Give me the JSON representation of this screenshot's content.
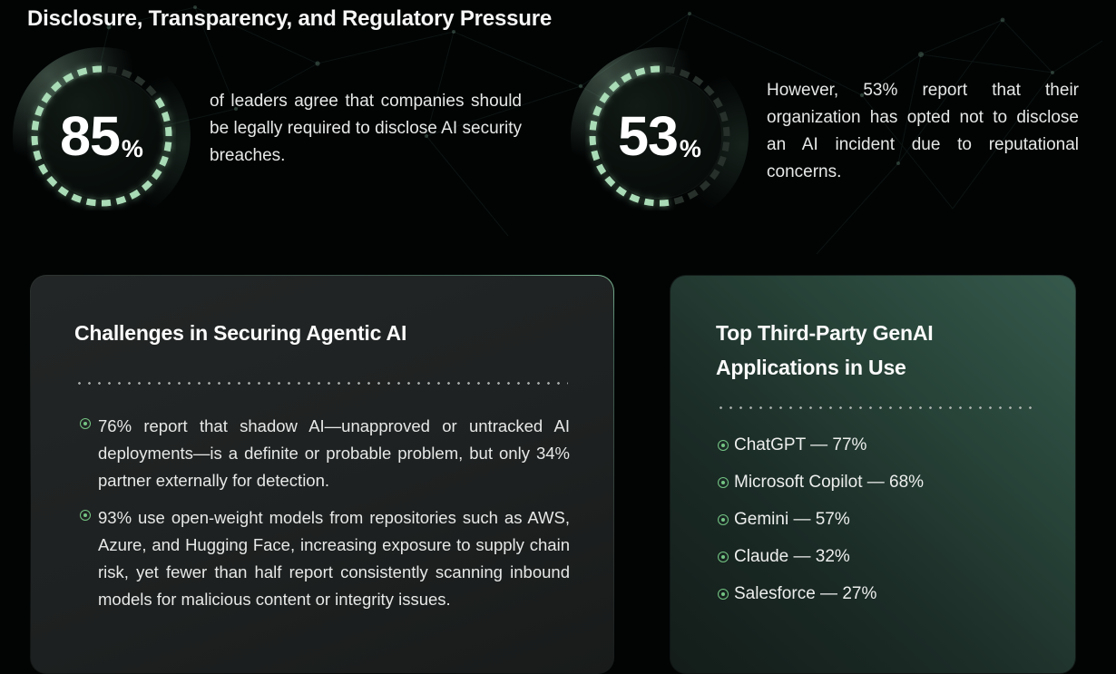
{
  "page": {
    "title": "Disclosure, Transparency, and Regulatory Pressure"
  },
  "stats": [
    {
      "value": "85",
      "unit": "%",
      "percent": 85,
      "text": "of leaders agree that companies should be legally required to disclose AI security breaches."
    },
    {
      "value": "53",
      "unit": "%",
      "percent": 53,
      "text": "However, 53% report that their organization has opted not to disclose an AI incident due to reputational concerns."
    }
  ],
  "cards": [
    {
      "title": "Challenges in Securing Agentic AI",
      "bullets": [
        "76% report that shadow AI—unapproved or untracked AI deployments—is a definite or probable problem, but only 34% partner externally for detection.",
        "93% use open-weight models from repositories such as AWS, Azure, and Hugging Face, increasing exposure to supply chain risk, yet fewer than half report consistently scanning inbound models for malicious content or integrity issues."
      ]
    },
    {
      "title": "Top Third-Party GenAI Applications in Use",
      "items": [
        "ChatGPT — 77%",
        "Microsoft Copilot — 68%",
        "Gemini — 57%",
        "Claude — 32%",
        "Salesforce — 27%"
      ]
    }
  ],
  "chart_data": [
    {
      "type": "gauge",
      "value": 85,
      "unit": "%",
      "label": "of leaders agree that companies should be legally required to disclose AI security breaches.",
      "style": "dashed-ring",
      "fill_direction": "counterclockwise-from-top"
    },
    {
      "type": "gauge",
      "value": 53,
      "unit": "%",
      "label": "However, 53% report that their organization has opted not to disclose an AI incident due to reputational concerns.",
      "style": "dashed-ring",
      "fill_direction": "counterclockwise-from-top"
    },
    {
      "type": "bar",
      "title": "Top Third-Party GenAI Applications in Use",
      "categories": [
        "ChatGPT",
        "Microsoft Copilot",
        "Gemini",
        "Claude",
        "Salesforce"
      ],
      "values": [
        77,
        68,
        57,
        32,
        27
      ],
      "unit": "%",
      "presentation": "text-list"
    }
  ],
  "colors": {
    "background": "#020404",
    "ring_bright": "#a9dbb6",
    "ring_dim": "#27302a",
    "bullet_green": "#74c584",
    "card_left_bg": "#1f2322",
    "card_right_top": "#2e5348",
    "text_primary": "#f5f6f5",
    "text_body": "#e6e8e7",
    "divider_dot": "#c3c8c5"
  }
}
